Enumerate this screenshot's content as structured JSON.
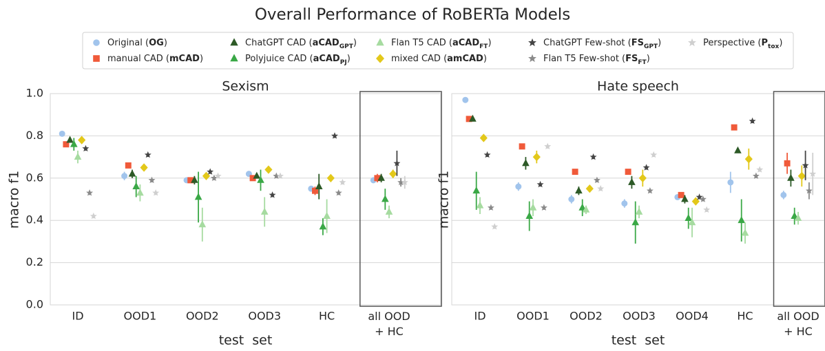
{
  "title": "Overall Performance of RoBERTa Models",
  "legend": [
    {
      "color": "#a1c4ec",
      "marker": "circle",
      "name_parts": [
        {
          "text": "Original ("
        },
        {
          "text": "OG",
          "bold": true
        },
        {
          "text": ")"
        }
      ]
    },
    {
      "color": "#f05a3a",
      "marker": "square",
      "name_parts": [
        {
          "text": "manual CAD ("
        },
        {
          "text": "mCAD",
          "bold": true
        },
        {
          "text": ")"
        }
      ]
    },
    {
      "color": "#2d5a27",
      "marker": "triangle",
      "name_parts": [
        {
          "text": "ChatGPT CAD ("
        },
        {
          "text": "aCAD",
          "bold": true
        },
        {
          "text": "GPT",
          "bold": true,
          "sub": true
        },
        {
          "text": ")"
        }
      ]
    },
    {
      "color": "#3aa846",
      "marker": "triangle",
      "name_parts": [
        {
          "text": "Polyjuice CAD ("
        },
        {
          "text": "aCAD",
          "bold": true
        },
        {
          "text": "PJ",
          "bold": true,
          "sub": true
        },
        {
          "text": ")"
        }
      ]
    },
    {
      "color": "#a6dba0",
      "marker": "triangle",
      "name_parts": [
        {
          "text": "Flan T5 CAD ("
        },
        {
          "text": "aCAD",
          "bold": true
        },
        {
          "text": "FT",
          "bold": true,
          "sub": true
        },
        {
          "text": ")"
        }
      ]
    },
    {
      "color": "#e3c81a",
      "marker": "diamond",
      "name_parts": [
        {
          "text": "mixed CAD ("
        },
        {
          "text": "amCAD",
          "bold": true
        },
        {
          "text": ")"
        }
      ]
    },
    {
      "color": "#444444",
      "marker": "star",
      "name_parts": [
        {
          "text": "ChatGPT Few-shot ("
        },
        {
          "text": "FS",
          "bold": true
        },
        {
          "text": "GPT",
          "bold": true,
          "sub": true
        },
        {
          "text": ")"
        }
      ]
    },
    {
      "color": "#8a8a8a",
      "marker": "star",
      "name_parts": [
        {
          "text": "Flan T5 Few-shot ("
        },
        {
          "text": "FS",
          "bold": true
        },
        {
          "text": "FT",
          "bold": true,
          "sub": true
        },
        {
          "text": ")"
        }
      ]
    },
    {
      "color": "#cfcfcf",
      "marker": "star",
      "name_parts": [
        {
          "text": "Perspective ("
        },
        {
          "text": "P",
          "bold": true
        },
        {
          "text": "tox",
          "bold": true,
          "sub": true
        },
        {
          "text": ")"
        }
      ]
    }
  ],
  "chart_data": [
    {
      "type": "point",
      "title": "Sexism",
      "xlabel": "test  set",
      "ylabel": "macro f1",
      "categories": [
        "ID",
        "OOD1",
        "OOD2",
        "OOD3",
        "HC",
        "all OOD\n+ HC"
      ],
      "ylim": [
        0,
        1
      ],
      "yticks": [
        {
          "value": 0,
          "label": "0.0"
        },
        0.2,
        0.4,
        0.6,
        0.8,
        {
          "value": 1,
          "label": "1.0"
        }
      ],
      "ytick_labels": true,
      "grid": true,
      "highlight_last": true,
      "series": [
        {
          "values": [
            0.81,
            0.61,
            0.59,
            0.62,
            0.55,
            0.59
          ],
          "errors": [
            0.01,
            0.02,
            0.01,
            0.01,
            0.01,
            0.01
          ]
        },
        {
          "values": [
            0.76,
            0.66,
            0.59,
            0.6,
            0.54,
            0.6
          ],
          "errors": [
            0.01,
            0.01,
            0.01,
            0.01,
            0.02,
            0.02
          ]
        },
        {
          "values": [
            0.78,
            0.62,
            0.59,
            0.61,
            0.56,
            0.6
          ],
          "errors": [
            0.01,
            0.02,
            0.02,
            0.01,
            0.06,
            0.02
          ]
        },
        {
          "values": [
            0.76,
            0.56,
            0.51,
            0.59,
            0.37,
            0.5
          ],
          "errors": [
            0.03,
            0.05,
            0.12,
            0.05,
            0.04,
            0.05
          ]
        },
        {
          "values": [
            0.7,
            0.53,
            0.38,
            0.44,
            0.42,
            0.44
          ],
          "errors": [
            0.03,
            0.04,
            0.08,
            0.07,
            0.08,
            0.03
          ]
        },
        {
          "values": [
            0.78,
            0.65,
            0.61,
            0.64,
            0.6,
            0.62
          ],
          "errors": [
            0.01,
            0.01,
            0.01,
            0.01,
            0.01,
            0.02
          ]
        },
        {
          "values": [
            0.74,
            0.71,
            0.63,
            0.52,
            0.8,
            0.67
          ],
          "errors": [
            0.01,
            0.01,
            0.01,
            0.01,
            0.01,
            0.06
          ]
        },
        {
          "values": [
            0.53,
            0.59,
            0.6,
            0.61,
            0.53,
            0.58
          ],
          "errors": [
            0.01,
            0.01,
            0.01,
            0.01,
            0.01,
            0.02
          ]
        },
        {
          "values": [
            0.42,
            0.53,
            0.61,
            0.61,
            0.58,
            0.58
          ],
          "errors": [
            0.01,
            0.01,
            0.01,
            0.01,
            0.01,
            0.03
          ]
        }
      ]
    },
    {
      "type": "point",
      "title": "Hate speech",
      "xlabel": "test  set",
      "ylabel": "macro f1",
      "categories": [
        "ID",
        "OOD1",
        "OOD2",
        "OOD3",
        "OOD4",
        "HC",
        "all OOD\n+ HC"
      ],
      "ylim": [
        0,
        1
      ],
      "yticks": [
        0,
        0.2,
        0.4,
        0.6,
        0.8,
        1
      ],
      "ytick_labels": false,
      "grid": true,
      "highlight_last": true,
      "series": [
        {
          "values": [
            0.97,
            0.56,
            0.5,
            0.48,
            0.51,
            0.58,
            0.52
          ],
          "errors": [
            0.01,
            0.02,
            0.02,
            0.02,
            0.01,
            0.05,
            0.02
          ]
        },
        {
          "values": [
            0.88,
            0.75,
            0.63,
            0.63,
            0.52,
            0.84,
            0.67
          ],
          "errors": [
            0.01,
            0.01,
            0.01,
            0.01,
            0.01,
            0.01,
            0.05
          ]
        },
        {
          "values": [
            0.88,
            0.67,
            0.54,
            0.58,
            0.5,
            0.73,
            0.6
          ],
          "errors": [
            0.01,
            0.03,
            0.02,
            0.03,
            0.02,
            0.01,
            0.04
          ]
        },
        {
          "values": [
            0.54,
            0.42,
            0.46,
            0.39,
            0.41,
            0.4,
            0.42
          ],
          "errors": [
            0.09,
            0.07,
            0.04,
            0.1,
            0.05,
            0.1,
            0.04
          ]
        },
        {
          "values": [
            0.47,
            0.46,
            0.45,
            0.44,
            0.39,
            0.34,
            0.41
          ],
          "errors": [
            0.04,
            0.04,
            0.02,
            0.03,
            0.07,
            0.05,
            0.03
          ]
        },
        {
          "values": [
            0.79,
            0.7,
            0.55,
            0.6,
            0.49,
            0.69,
            0.61
          ],
          "errors": [
            0.01,
            0.03,
            0.01,
            0.04,
            0.01,
            0.05,
            0.05
          ]
        },
        {
          "values": [
            0.71,
            0.57,
            0.7,
            0.65,
            0.51,
            0.87,
            0.66
          ],
          "errors": [
            0.01,
            0.01,
            0.01,
            0.01,
            0.01,
            0.01,
            0.07
          ]
        },
        {
          "values": [
            0.46,
            0.46,
            0.59,
            0.54,
            0.5,
            0.61,
            0.54
          ],
          "errors": [
            0.01,
            0.01,
            0.01,
            0.01,
            0.01,
            0.01,
            0.04
          ]
        },
        {
          "values": [
            0.37,
            0.75,
            0.55,
            0.71,
            0.45,
            0.64,
            0.62
          ],
          "errors": [
            0.01,
            0.01,
            0.01,
            0.01,
            0.01,
            0.01,
            0.1
          ]
        }
      ]
    }
  ]
}
